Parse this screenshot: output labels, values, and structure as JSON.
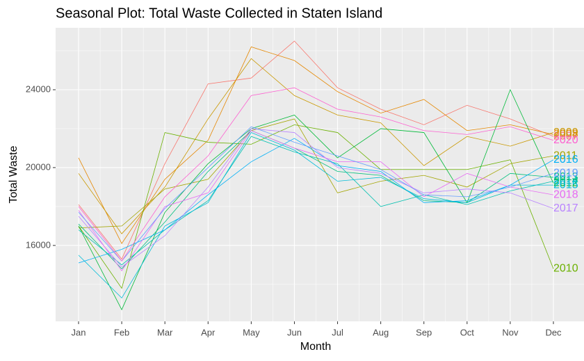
{
  "chart_data": {
    "type": "line",
    "title": "Seasonal Plot: Total Waste Collected in Staten Island",
    "x_label": "Month",
    "y_label": "Total Waste",
    "categories": [
      "Jan",
      "Feb",
      "Mar",
      "Apr",
      "May",
      "Jun",
      "Jul",
      "Aug",
      "Sep",
      "Oct",
      "Nov",
      "Dec"
    ],
    "ylim": [
      12100,
      27180
    ],
    "yticks": [
      16000,
      20000,
      24000
    ],
    "grid": true,
    "series": [
      {
        "name": "2007",
        "color": "#F8766D",
        "values": [
          18100,
          15300,
          20200,
          24300,
          24600,
          26500,
          24100,
          23000,
          22200,
          23200,
          22500,
          21600
        ]
      },
      {
        "name": "2008",
        "color": "#E58700",
        "values": [
          20500,
          16100,
          19400,
          21400,
          26200,
          25500,
          23900,
          22800,
          23500,
          21900,
          22200,
          21700
        ]
      },
      {
        "name": "2009",
        "color": "#C99800",
        "values": [
          19700,
          16600,
          19000,
          22500,
          25600,
          23700,
          22700,
          22300,
          20100,
          21600,
          21100,
          21800
        ]
      },
      {
        "name": "2010",
        "color": "#6BB100",
        "values": [
          17000,
          13800,
          21800,
          21300,
          21200,
          22200,
          21800,
          19900,
          19900,
          19900,
          20400,
          14800
        ]
      },
      {
        "name": "2011",
        "color": "#A3A500",
        "values": [
          16900,
          17000,
          18900,
          19400,
          21900,
          22500,
          18700,
          19300,
          19600,
          19000,
          20200,
          20600
        ]
      },
      {
        "name": "2012",
        "color": "#00BA38",
        "values": [
          17000,
          12700,
          17700,
          20200,
          22000,
          22700,
          20500,
          22000,
          21800,
          18200,
          24000,
          19200
        ]
      },
      {
        "name": "2013",
        "color": "#00BF7D",
        "values": [
          17100,
          14800,
          17200,
          19800,
          21900,
          21000,
          19800,
          19600,
          18300,
          18200,
          19700,
          19500
        ]
      },
      {
        "name": "2014",
        "color": "#00C0AF",
        "values": [
          16800,
          15000,
          16800,
          18300,
          21600,
          20800,
          20200,
          18000,
          18600,
          18100,
          18800,
          19300
        ]
      },
      {
        "name": "2015",
        "color": "#00BCD8",
        "values": [
          15500,
          13300,
          17000,
          18200,
          21800,
          20900,
          19300,
          19500,
          18400,
          18200,
          19100,
          19100
        ]
      },
      {
        "name": "2016",
        "color": "#00B0F6",
        "values": [
          15100,
          15800,
          16800,
          18600,
          20300,
          21500,
          20100,
          19800,
          18200,
          18300,
          19100,
          20400
        ]
      },
      {
        "name": "2017",
        "color": "#B983FF",
        "values": [
          17500,
          14900,
          16500,
          19000,
          22000,
          21800,
          20000,
          19700,
          18700,
          18900,
          18700,
          17900
        ]
      },
      {
        "name": "2018",
        "color": "#E76BF3",
        "values": [
          17800,
          14700,
          18000,
          18700,
          21900,
          21000,
          20300,
          20300,
          18500,
          19700,
          19000,
          18600
        ]
      },
      {
        "name": "2019",
        "color": "#619CFF",
        "values": [
          17700,
          15200,
          17900,
          20000,
          22100,
          21300,
          20600,
          19900,
          18600,
          18500,
          19000,
          19700
        ]
      },
      {
        "name": "2020",
        "color": "#FD61D1",
        "values": [
          18000,
          15200,
          18500,
          20600,
          23700,
          24100,
          23000,
          22600,
          21900,
          21700,
          22100,
          21400
        ]
      }
    ]
  }
}
